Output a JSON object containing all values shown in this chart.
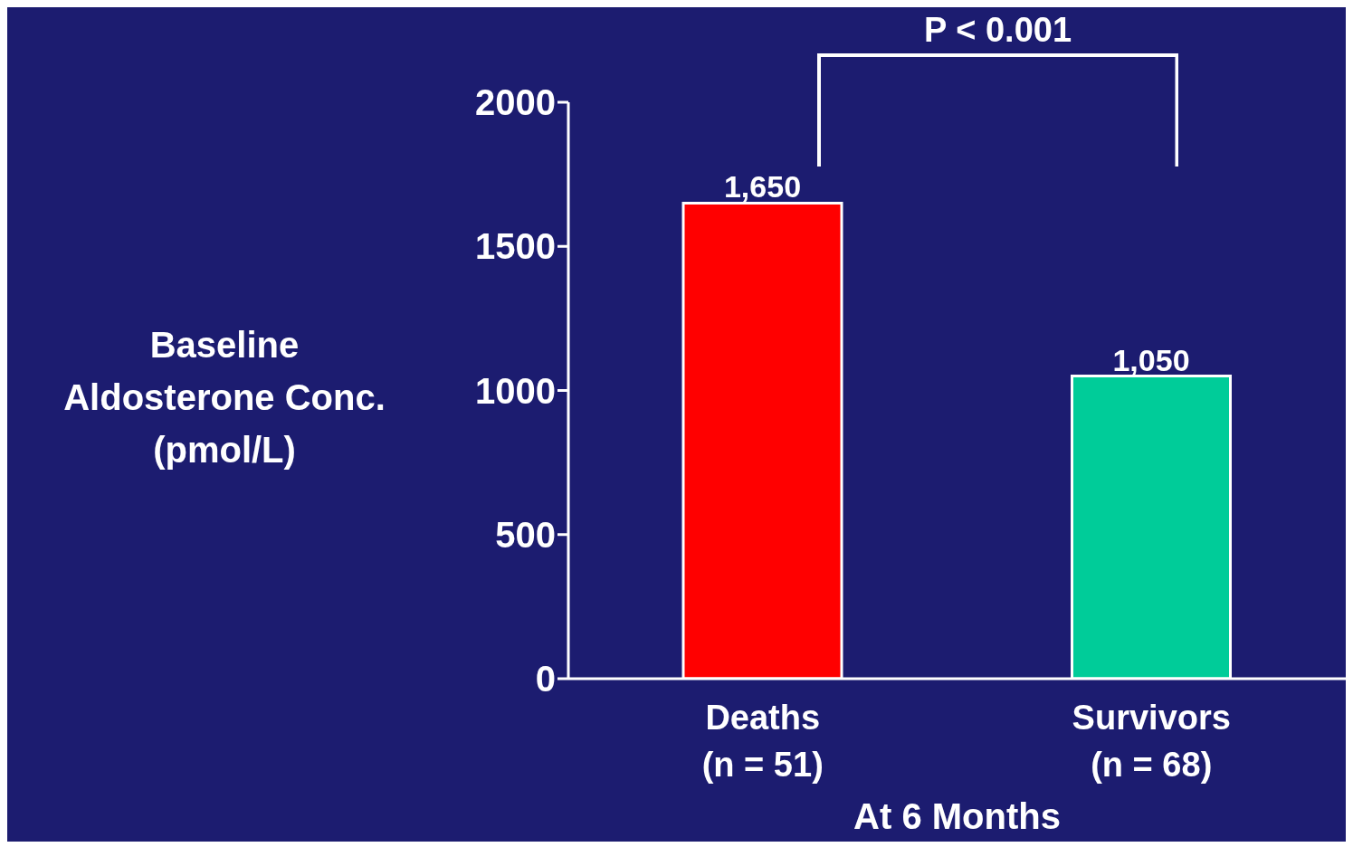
{
  "chart_data": {
    "type": "bar",
    "categories": [
      "Deaths\n(n = 51)",
      "Survivors\n(n = 68)"
    ],
    "values": [
      1650,
      1050
    ],
    "colors": [
      "#ff0000",
      "#00cc99"
    ],
    "value_labels": [
      "1,650",
      "1,050"
    ],
    "xlabel": "At 6 Months",
    "ylabel": "Baseline\nAldosterone Conc.\n(pmol/L)",
    "ylim": [
      0,
      2000
    ],
    "yticks": [
      0,
      500,
      1000,
      1500,
      2000
    ],
    "annotations": [
      "P < 0.001"
    ]
  }
}
